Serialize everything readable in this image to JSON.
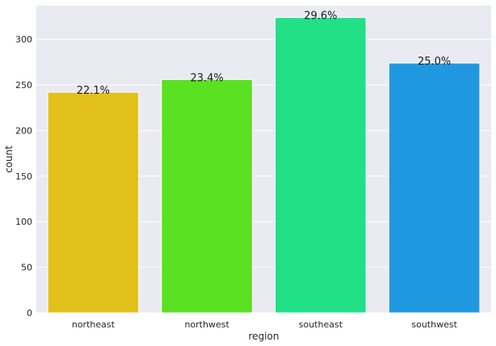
{
  "chart_data": {
    "type": "bar",
    "title": "",
    "xlabel": "region",
    "ylabel": "count",
    "categories": [
      "northeast",
      "northwest",
      "southeast",
      "southwest"
    ],
    "values": [
      242,
      256,
      324,
      274
    ],
    "data_labels": [
      "22.1%",
      "23.4%",
      "29.6%",
      "25.0%"
    ],
    "colors": [
      "#e2c11c",
      "#5ae121",
      "#21e085",
      "#2098e1"
    ],
    "ylim": [
      0,
      337
    ],
    "yticks": [
      0,
      50,
      100,
      150,
      200,
      250,
      300
    ],
    "grid": true,
    "background": "#eaeaf2",
    "legend": "none"
  }
}
